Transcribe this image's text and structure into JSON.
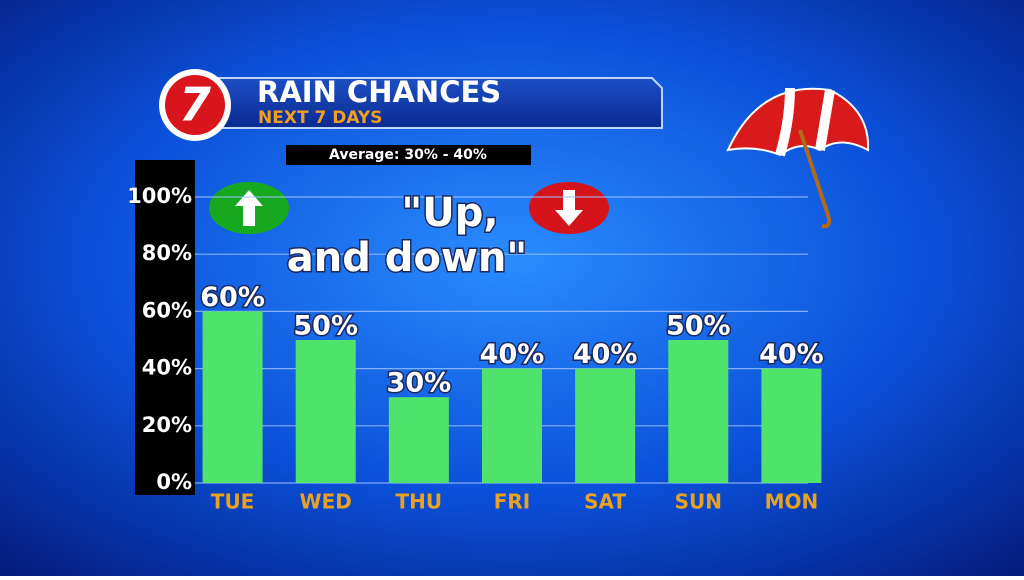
{
  "chart_data": {
    "type": "bar",
    "logo": "7",
    "title": "RAIN CHANCES",
    "subtitle": "NEXT 7 DAYS",
    "annotation": "Average: 30% - 40%",
    "callout": [
      "\"Up,",
      "and down\""
    ],
    "categories": [
      "TUE",
      "WED",
      "THU",
      "FRI",
      "SAT",
      "SUN",
      "MON"
    ],
    "values": [
      60,
      50,
      30,
      40,
      40,
      50,
      40
    ],
    "value_labels": [
      "60%",
      "50%",
      "30%",
      "40%",
      "40%",
      "50%",
      "40%"
    ],
    "color": "#4fe36b",
    "ylim": [
      0,
      100
    ],
    "yticks": [
      {
        "value": 0,
        "label": "0%"
      },
      {
        "value": 20,
        "label": "20%"
      },
      {
        "value": 40,
        "label": "40%"
      },
      {
        "value": 60,
        "label": "60%"
      },
      {
        "value": 80,
        "label": "80%"
      },
      {
        "value": 100,
        "label": "100%"
      }
    ],
    "grid": true
  }
}
